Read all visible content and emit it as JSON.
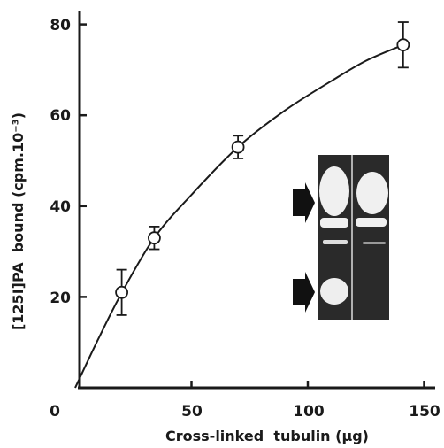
{
  "chart_data": {
    "type": "scatter",
    "xlabel": "Cross-linked  tubulin (μg)",
    "ylabel": "[125I]PA  bound (cpm.10⁻³)",
    "xlim": [
      0,
      150
    ],
    "ylim": [
      0,
      80
    ],
    "x_ticks": [
      "0",
      "50",
      "100",
      "150"
    ],
    "y_ticks": [
      "20",
      "40",
      "60",
      "80"
    ],
    "grid": false,
    "points": [
      {
        "x": 20,
        "y": 21,
        "err": 5
      },
      {
        "x": 34,
        "y": 33,
        "err": 2.5
      },
      {
        "x": 70,
        "y": 53,
        "err": 2.5
      },
      {
        "x": 141,
        "y": 75.5,
        "err": 5
      }
    ],
    "curve": [
      [
        0,
        0
      ],
      [
        10,
        10.8
      ],
      [
        20,
        20.9
      ],
      [
        34,
        33
      ],
      [
        50,
        42.5
      ],
      [
        70,
        53
      ],
      [
        90,
        61
      ],
      [
        110,
        67.5
      ],
      [
        125,
        72
      ],
      [
        141,
        75.5
      ]
    ],
    "colors": {
      "ink": "#1a1a1a",
      "inset_bg": "#2a2a2a",
      "band": "#f0f0f0",
      "arrow": "#111111"
    }
  }
}
